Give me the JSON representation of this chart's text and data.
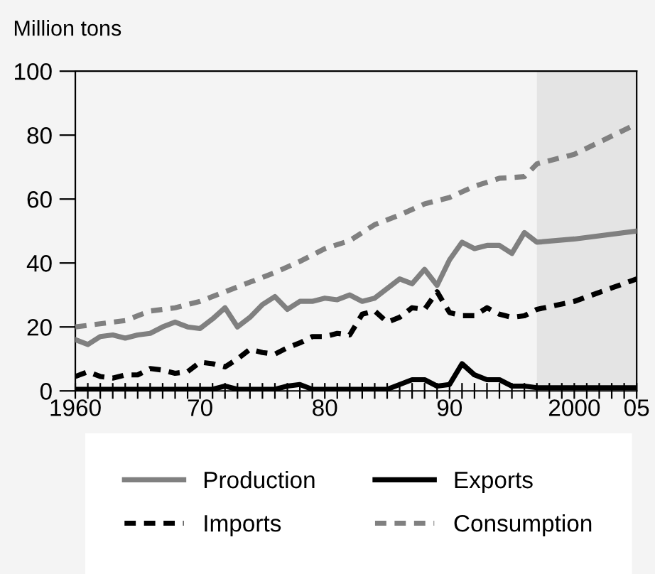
{
  "chart_data": {
    "type": "line",
    "ylabel": "Million tons",
    "xlim": [
      1960,
      2005
    ],
    "ylim": [
      0,
      100
    ],
    "yticks": [
      0,
      20,
      40,
      60,
      80,
      100
    ],
    "xticks": [
      {
        "value": 1960,
        "label": "1960"
      },
      {
        "value": 1961,
        "label": null
      },
      {
        "value": 1962,
        "label": null
      },
      {
        "value": 1963,
        "label": null
      },
      {
        "value": 1964,
        "label": null
      },
      {
        "value": 1965,
        "label": null
      },
      {
        "value": 1966,
        "label": null
      },
      {
        "value": 1967,
        "label": null
      },
      {
        "value": 1968,
        "label": null
      },
      {
        "value": 1969,
        "label": null
      },
      {
        "value": 1970,
        "label": "70"
      },
      {
        "value": 1971,
        "label": null
      },
      {
        "value": 1972,
        "label": null
      },
      {
        "value": 1973,
        "label": null
      },
      {
        "value": 1974,
        "label": null
      },
      {
        "value": 1975,
        "label": null
      },
      {
        "value": 1976,
        "label": null
      },
      {
        "value": 1977,
        "label": null
      },
      {
        "value": 1978,
        "label": null
      },
      {
        "value": 1979,
        "label": null
      },
      {
        "value": 1980,
        "label": "80"
      },
      {
        "value": 1981,
        "label": null
      },
      {
        "value": 1982,
        "label": null
      },
      {
        "value": 1983,
        "label": null
      },
      {
        "value": 1984,
        "label": null
      },
      {
        "value": 1985,
        "label": null
      },
      {
        "value": 1986,
        "label": null
      },
      {
        "value": 1987,
        "label": null
      },
      {
        "value": 1988,
        "label": null
      },
      {
        "value": 1989,
        "label": null
      },
      {
        "value": 1990,
        "label": "90"
      },
      {
        "value": 1991,
        "label": null
      },
      {
        "value": 1992,
        "label": null
      },
      {
        "value": 1993,
        "label": null
      },
      {
        "value": 1994,
        "label": null
      },
      {
        "value": 1995,
        "label": null
      },
      {
        "value": 1996,
        "label": null
      },
      {
        "value": 1997,
        "label": null
      },
      {
        "value": 1998,
        "label": null
      },
      {
        "value": 1999,
        "label": null
      },
      {
        "value": 2000,
        "label": "2000"
      },
      {
        "value": 2001,
        "label": null
      },
      {
        "value": 2002,
        "label": null
      },
      {
        "value": 2003,
        "label": null
      },
      {
        "value": 2004,
        "label": null
      },
      {
        "value": 2005,
        "label": "05"
      }
    ],
    "bands": [
      {
        "axis": "x",
        "from": 1997,
        "to": 2005,
        "color": "#e4e4e4"
      }
    ],
    "legend": "bottom",
    "grid": false,
    "series": [
      {
        "name": "Production",
        "color": "#808080",
        "line_style": "solid",
        "x": [
          1960,
          1961,
          1962,
          1963,
          1964,
          1965,
          1966,
          1967,
          1968,
          1969,
          1970,
          1971,
          1972,
          1973,
          1974,
          1975,
          1976,
          1977,
          1978,
          1979,
          1980,
          1981,
          1982,
          1983,
          1984,
          1985,
          1986,
          1987,
          1988,
          1989,
          1990,
          1991,
          1992,
          1993,
          1994,
          1995,
          1996,
          1997,
          2000,
          2005
        ],
        "values": [
          16,
          14.5,
          17,
          17.5,
          16.5,
          17.5,
          18,
          20,
          21.5,
          20,
          19.5,
          22.5,
          26,
          20,
          23,
          27,
          29.5,
          25.5,
          28,
          28,
          29,
          28.5,
          30,
          28,
          29,
          32,
          35,
          33.5,
          38,
          33,
          41,
          46.5,
          44.5,
          45.5,
          45.5,
          43,
          49.5,
          46.5,
          47.5,
          50
        ]
      },
      {
        "name": "Exports",
        "color": "#000000",
        "line_style": "solid",
        "x": [
          1960,
          1971,
          1972,
          1973,
          1976,
          1977,
          1978,
          1979,
          1985,
          1986,
          1987,
          1988,
          1989,
          1990,
          1991,
          1992,
          1993,
          1994,
          1995,
          1996,
          1997,
          2005
        ],
        "values": [
          0.5,
          0.5,
          1.5,
          0.5,
          0.5,
          1.5,
          2,
          0.5,
          0.5,
          2,
          3.5,
          3.5,
          1.5,
          2,
          8.5,
          5,
          3.5,
          3.5,
          1.5,
          1.5,
          1,
          1
        ]
      },
      {
        "name": "Imports",
        "color": "#000000",
        "line_style": "dashed",
        "x": [
          1960,
          1961,
          1962,
          1963,
          1964,
          1965,
          1966,
          1967,
          1968,
          1969,
          1970,
          1971,
          1972,
          1973,
          1974,
          1975,
          1976,
          1977,
          1978,
          1979,
          1980,
          1981,
          1982,
          1983,
          1984,
          1985,
          1986,
          1987,
          1988,
          1989,
          1990,
          1991,
          1992,
          1993,
          1994,
          1995,
          1996,
          1997,
          2000,
          2005
        ],
        "values": [
          4.5,
          6,
          4.5,
          4,
          5,
          5,
          7,
          6.5,
          5.5,
          6,
          9,
          8.5,
          7.5,
          10,
          13,
          12,
          11.5,
          13.5,
          15,
          17,
          17,
          18,
          17.5,
          24,
          25,
          21.5,
          23,
          26,
          25.5,
          31,
          24.5,
          23.5,
          23.5,
          26,
          24,
          23,
          23.5,
          25.5,
          28,
          35
        ]
      },
      {
        "name": "Consumption",
        "color": "#808080",
        "line_style": "dashed",
        "x": [
          1960,
          1962,
          1964,
          1966,
          1968,
          1970,
          1972,
          1974,
          1976,
          1978,
          1980,
          1982,
          1984,
          1986,
          1988,
          1990,
          1992,
          1994,
          1996,
          1997,
          2000,
          2005
        ],
        "values": [
          20,
          21,
          22,
          25,
          26,
          28,
          31,
          34,
          37,
          40.5,
          44.5,
          47,
          52,
          55,
          58.5,
          60.5,
          64,
          66.5,
          67,
          71,
          74,
          83.5
        ]
      }
    ]
  }
}
